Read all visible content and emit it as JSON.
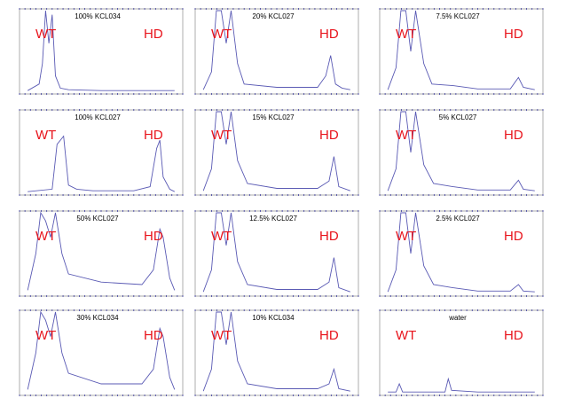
{
  "panels": [
    {
      "title": "100% KCL034",
      "wt": "WT",
      "hd": "HD"
    },
    {
      "title": "20% KCL027",
      "wt": "WT",
      "hd": "HD"
    },
    {
      "title": "7.5% KCL027",
      "wt": "WT",
      "hd": "HD"
    },
    {
      "title": "100% KCL027",
      "wt": "WT",
      "hd": "HD"
    },
    {
      "title": "15% KCL027",
      "wt": "WT",
      "hd": "HD"
    },
    {
      "title": "5% KCL027",
      "wt": "WT",
      "hd": "HD"
    },
    {
      "title": "50% KCL027",
      "wt": "WT",
      "hd": "HD"
    },
    {
      "title": "12.5% KCL027",
      "wt": "WT",
      "hd": "HD"
    },
    {
      "title": "2.5% KCL027",
      "wt": "WT",
      "hd": "HD"
    },
    {
      "title": "30% KCL034",
      "wt": "WT",
      "hd": "HD"
    },
    {
      "title": "10% KCL034",
      "wt": "WT",
      "hd": "HD"
    },
    {
      "title": "water",
      "wt": "WT",
      "hd": "HD"
    }
  ],
  "colors": {
    "trace": "#5a5ab4",
    "label": "#e8141c",
    "frame": "#9a9a9a",
    "axis_marks": "#3a3aa0"
  },
  "chart_data": [
    {
      "type": "line",
      "title": "100% KCL034",
      "annotations": [
        "WT",
        "HD"
      ],
      "x": [
        0.05,
        0.12,
        0.14,
        0.16,
        0.18,
        0.2,
        0.22,
        0.25,
        0.3,
        0.5,
        0.75,
        0.82,
        0.88,
        0.95
      ],
      "y": [
        0.02,
        0.1,
        0.35,
        1.0,
        0.6,
        0.95,
        0.2,
        0.05,
        0.03,
        0.02,
        0.02,
        0.02,
        0.02,
        0.02
      ]
    },
    {
      "type": "line",
      "title": "20% KCL027",
      "annotations": [
        "WT",
        "HD"
      ],
      "x": [
        0.05,
        0.1,
        0.13,
        0.16,
        0.19,
        0.22,
        0.26,
        0.3,
        0.5,
        0.75,
        0.8,
        0.83,
        0.86,
        0.9,
        0.95
      ],
      "y": [
        0.03,
        0.25,
        1.0,
        1.0,
        0.6,
        1.0,
        0.35,
        0.1,
        0.06,
        0.06,
        0.2,
        0.45,
        0.1,
        0.05,
        0.03
      ]
    },
    {
      "type": "line",
      "title": "7.5% KCL027",
      "annotations": [
        "WT",
        "HD"
      ],
      "x": [
        0.05,
        0.1,
        0.13,
        0.16,
        0.19,
        0.22,
        0.27,
        0.32,
        0.45,
        0.6,
        0.8,
        0.85,
        0.88,
        0.95
      ],
      "y": [
        0.03,
        0.3,
        1.0,
        1.0,
        0.5,
        1.0,
        0.35,
        0.1,
        0.08,
        0.04,
        0.04,
        0.18,
        0.06,
        0.03
      ]
    },
    {
      "type": "line",
      "title": "100% KCL027",
      "annotations": [
        "WT",
        "HD"
      ],
      "x": [
        0.05,
        0.2,
        0.23,
        0.27,
        0.3,
        0.35,
        0.45,
        0.7,
        0.8,
        0.84,
        0.86,
        0.88,
        0.92,
        0.95
      ],
      "y": [
        0.02,
        0.05,
        0.6,
        0.7,
        0.1,
        0.05,
        0.03,
        0.03,
        0.08,
        0.55,
        0.65,
        0.2,
        0.05,
        0.02
      ]
    },
    {
      "type": "line",
      "title": "15% KCL027",
      "annotations": [
        "WT",
        "HD"
      ],
      "x": [
        0.05,
        0.1,
        0.13,
        0.16,
        0.19,
        0.22,
        0.26,
        0.32,
        0.5,
        0.75,
        0.82,
        0.85,
        0.88,
        0.95
      ],
      "y": [
        0.03,
        0.3,
        1.0,
        1.0,
        0.6,
        1.0,
        0.4,
        0.12,
        0.06,
        0.06,
        0.15,
        0.45,
        0.08,
        0.03
      ]
    },
    {
      "type": "line",
      "title": "5% KCL027",
      "annotations": [
        "WT",
        "HD"
      ],
      "x": [
        0.05,
        0.1,
        0.13,
        0.16,
        0.19,
        0.22,
        0.27,
        0.33,
        0.45,
        0.6,
        0.8,
        0.85,
        0.88,
        0.95
      ],
      "y": [
        0.03,
        0.3,
        1.0,
        1.0,
        0.5,
        1.0,
        0.35,
        0.12,
        0.08,
        0.04,
        0.04,
        0.16,
        0.05,
        0.03
      ]
    },
    {
      "type": "line",
      "title": "50% KCL027",
      "annotations": [
        "WT",
        "HD"
      ],
      "x": [
        0.05,
        0.1,
        0.13,
        0.16,
        0.19,
        0.22,
        0.26,
        0.3,
        0.5,
        0.75,
        0.82,
        0.86,
        0.88,
        0.92,
        0.95
      ],
      "y": [
        0.05,
        0.5,
        1.0,
        0.9,
        0.7,
        1.0,
        0.5,
        0.25,
        0.15,
        0.12,
        0.3,
        0.8,
        0.7,
        0.2,
        0.05
      ]
    },
    {
      "type": "line",
      "title": "12.5% KCL027",
      "annotations": [
        "WT",
        "HD"
      ],
      "x": [
        0.05,
        0.1,
        0.13,
        0.16,
        0.19,
        0.22,
        0.26,
        0.32,
        0.5,
        0.75,
        0.82,
        0.85,
        0.88,
        0.95
      ],
      "y": [
        0.03,
        0.3,
        1.0,
        1.0,
        0.6,
        1.0,
        0.4,
        0.12,
        0.06,
        0.06,
        0.15,
        0.45,
        0.08,
        0.03
      ]
    },
    {
      "type": "line",
      "title": "2.5% KCL027",
      "annotations": [
        "WT",
        "HD"
      ],
      "x": [
        0.05,
        0.1,
        0.13,
        0.16,
        0.19,
        0.22,
        0.27,
        0.33,
        0.45,
        0.6,
        0.8,
        0.85,
        0.88,
        0.95
      ],
      "y": [
        0.03,
        0.3,
        1.0,
        1.0,
        0.5,
        1.0,
        0.35,
        0.12,
        0.08,
        0.04,
        0.04,
        0.12,
        0.04,
        0.03
      ]
    },
    {
      "type": "line",
      "title": "30% KCL034",
      "annotations": [
        "WT",
        "HD"
      ],
      "x": [
        0.05,
        0.1,
        0.13,
        0.16,
        0.19,
        0.22,
        0.26,
        0.3,
        0.5,
        0.75,
        0.82,
        0.86,
        0.88,
        0.92,
        0.95
      ],
      "y": [
        0.05,
        0.5,
        1.0,
        0.9,
        0.7,
        1.0,
        0.5,
        0.25,
        0.12,
        0.12,
        0.3,
        0.8,
        0.7,
        0.2,
        0.05
      ]
    },
    {
      "type": "line",
      "title": "10% KCL034",
      "annotations": [
        "WT",
        "HD"
      ],
      "x": [
        0.05,
        0.1,
        0.13,
        0.16,
        0.19,
        0.22,
        0.26,
        0.32,
        0.5,
        0.75,
        0.82,
        0.85,
        0.88,
        0.95
      ],
      "y": [
        0.03,
        0.3,
        1.0,
        1.0,
        0.6,
        1.0,
        0.4,
        0.12,
        0.06,
        0.06,
        0.12,
        0.3,
        0.06,
        0.03
      ]
    },
    {
      "type": "line",
      "title": "water",
      "annotations": [
        "WT",
        "HD"
      ],
      "x": [
        0.05,
        0.1,
        0.12,
        0.14,
        0.3,
        0.4,
        0.42,
        0.44,
        0.6,
        0.95
      ],
      "y": [
        0.02,
        0.02,
        0.12,
        0.02,
        0.02,
        0.02,
        0.18,
        0.04,
        0.02,
        0.02
      ]
    }
  ]
}
